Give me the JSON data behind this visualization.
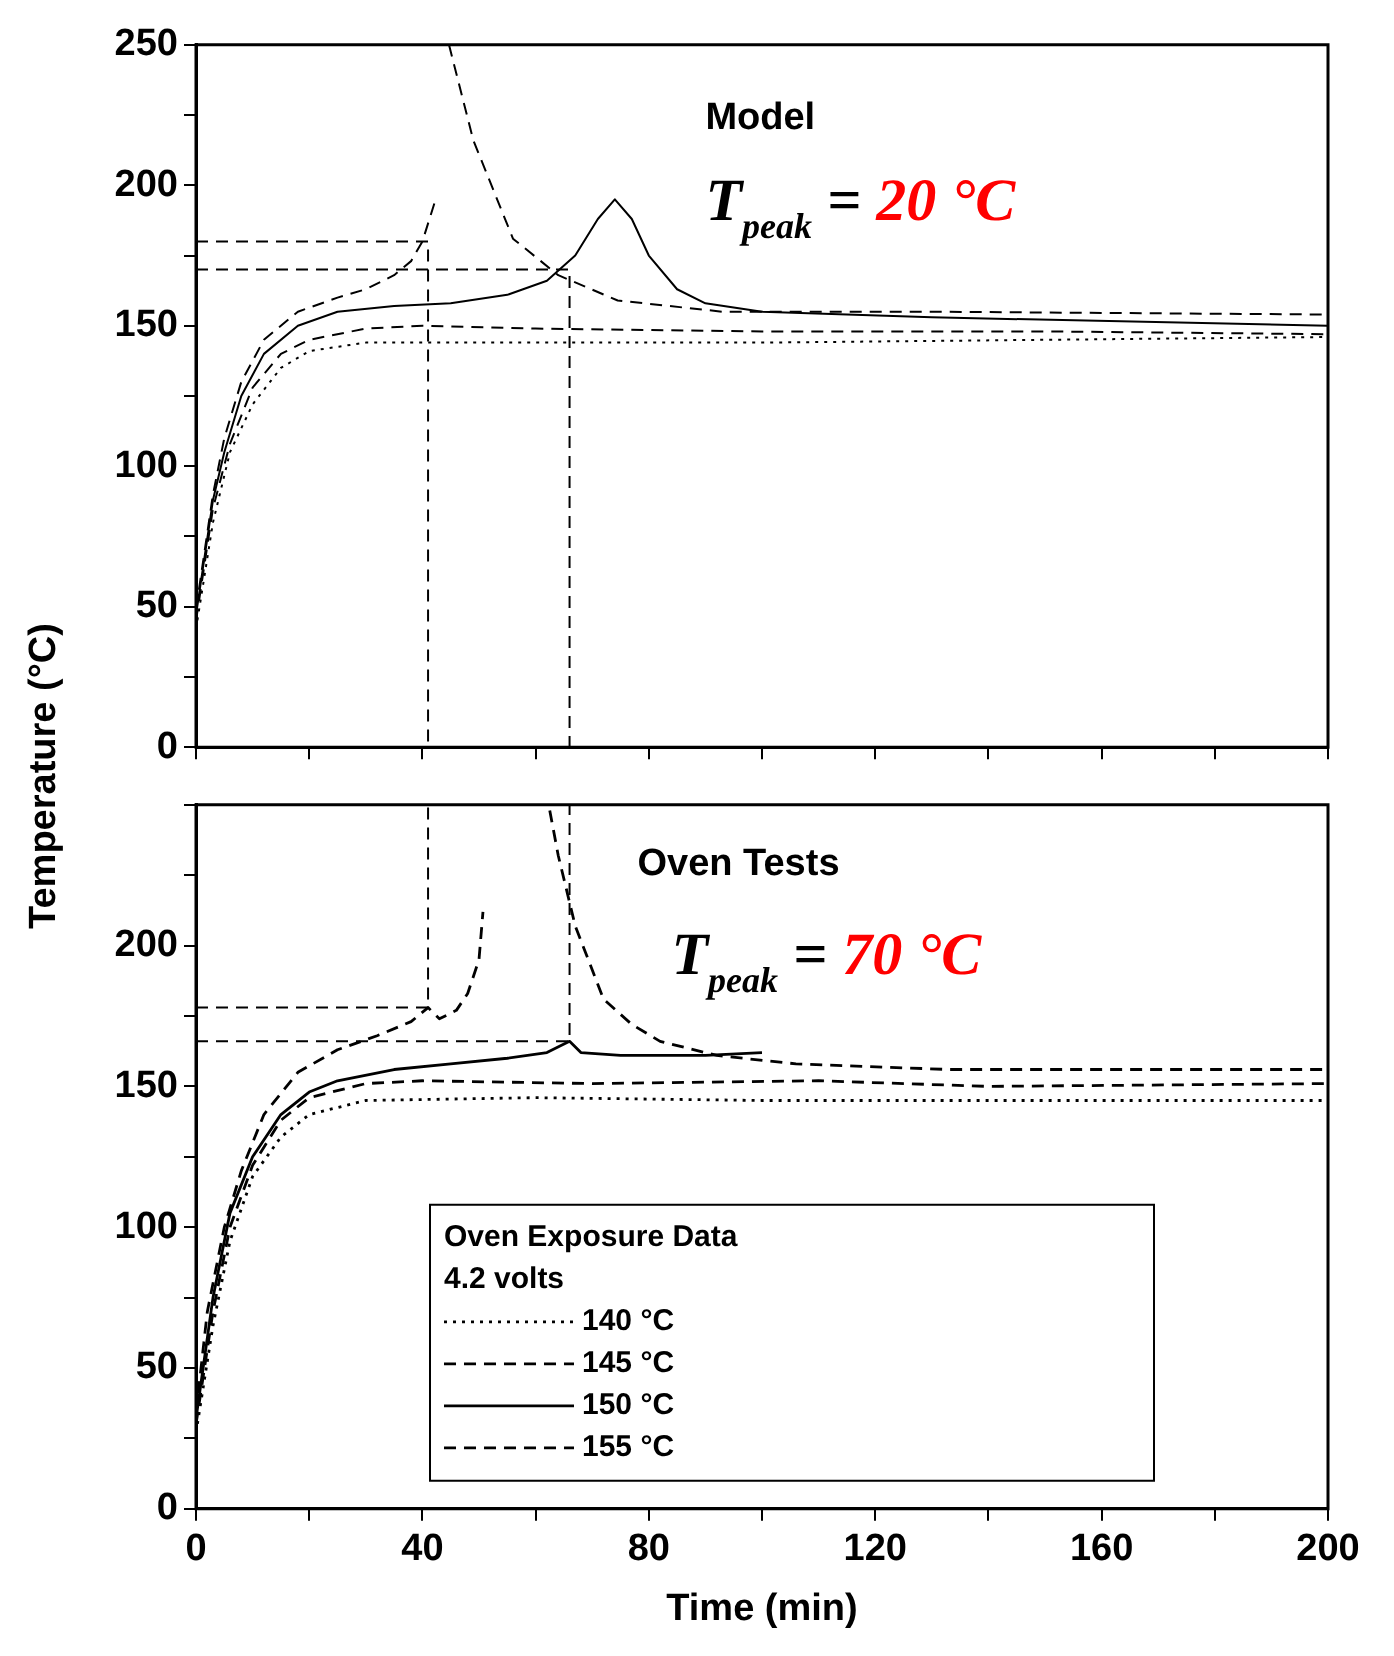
{
  "chart_data": [
    {
      "type": "line",
      "title": "Model",
      "ylabel": "Temperature (°C)",
      "annotations": [
        "T$_{peak}$ = 20 °C"
      ],
      "ylim": [
        0,
        250
      ],
      "yticks": [
        0,
        {
          "value": 25,
          "label": null
        },
        50,
        {
          "value": 75,
          "label": null
        },
        100,
        {
          "value": 125,
          "label": null
        },
        150,
        {
          "value": 175,
          "label": null
        },
        200,
        {
          "value": 225,
          "label": null
        },
        250
      ],
      "xlim": [
        0,
        200
      ],
      "xticks": [
        {
          "value": 0,
          "label": null
        },
        {
          "value": 20,
          "label": null
        },
        {
          "value": 40,
          "label": null
        },
        {
          "value": 60,
          "label": null
        },
        {
          "value": 80,
          "label": null
        },
        {
          "value": 100,
          "label": null
        },
        {
          "value": 120,
          "label": null
        },
        {
          "value": 140,
          "label": null
        },
        {
          "value": 160,
          "label": null
        },
        {
          "value": 180,
          "label": null
        },
        {
          "value": 200,
          "label": null
        }
      ],
      "tick_labels": "y",
      "grid": false,
      "legend": false,
      "marker": "none",
      "series": [
        {
          "color": "#000000",
          "line_style": "dotted",
          "x": [
            0,
            3,
            6,
            10,
            15,
            20,
            30,
            60,
            100,
            150,
            200
          ],
          "values": [
            42,
            80,
            105,
            122,
            135,
            141,
            144,
            144,
            144,
            145,
            146
          ]
        },
        {
          "color": "#000000",
          "line_style": "dashed",
          "x": [
            0,
            3,
            6,
            10,
            15,
            20,
            30,
            40,
            60,
            100,
            150,
            200
          ],
          "values": [
            45,
            85,
            108,
            128,
            140,
            145,
            149,
            150,
            149,
            148,
            148,
            147
          ]
        },
        {
          "color": "#000000",
          "line_style": "solid",
          "x": [
            0,
            3,
            5,
            8,
            12,
            18,
            25,
            35,
            45,
            55,
            62,
            67,
            71,
            74,
            77,
            80,
            85,
            90,
            100,
            130,
            200
          ],
          "values": [
            47,
            88,
            105,
            125,
            140,
            150,
            155,
            157,
            158,
            161,
            166,
            175,
            188,
            195,
            188,
            175,
            163,
            158,
            155,
            153,
            150
          ]
        },
        {
          "color": "#000000",
          "line_style": "dashed",
          "x": [
            0,
            3,
            5,
            8,
            12,
            18,
            25,
            30,
            35,
            38,
            40,
            42.5,
            43.5,
            44.7,
            49,
            56,
            64,
            74.5,
            93,
            130,
            200
          ],
          "values": [
            49,
            90,
            110,
            130,
            145,
            155,
            160,
            163,
            168,
            173,
            180,
            196,
            null,
            250,
            216,
            181,
            168,
            159,
            155,
            155,
            154
          ]
        },
        {
          "type": "line",
          "color": "#000000",
          "line_style": "dashed",
          "x": [
            0,
            41,
            41
          ],
          "values": [
            180,
            180,
            0
          ]
        },
        {
          "type": "line",
          "color": "#000000",
          "line_style": "dashed",
          "x": [
            0,
            66,
            66
          ],
          "values": [
            170,
            170,
            0
          ]
        }
      ]
    },
    {
      "type": "line",
      "title": "Oven Tests",
      "xlabel": "Time (min)",
      "annotations": [
        "T$_{peak}$ = 70 °C"
      ],
      "legend_title": "Oven Exposure Data\n4.2 volts",
      "legend": "bottom",
      "ylim": [
        0,
        250
      ],
      "yticks": [
        0,
        {
          "value": 25,
          "label": null
        },
        50,
        {
          "value": 75,
          "label": null
        },
        100,
        {
          "value": 125,
          "label": null
        },
        150,
        {
          "value": 175,
          "label": null
        },
        200,
        {
          "value": 225,
          "label": null
        },
        {
          "value": 250,
          "label": null
        }
      ],
      "xlim": [
        0,
        200
      ],
      "xticks": [
        0,
        {
          "value": 20,
          "label": null
        },
        40,
        {
          "value": 60,
          "label": null
        },
        80,
        {
          "value": 100,
          "label": null
        },
        120,
        {
          "value": 140,
          "label": null
        },
        160,
        {
          "value": 180,
          "label": null
        },
        200
      ],
      "grid": false,
      "marker": "none",
      "series": [
        {
          "name": "140 °C",
          "color": "#000000",
          "line_style": "dotted",
          "x": [
            0,
            3,
            6,
            10,
            15,
            20,
            30,
            60,
            100,
            150,
            200
          ],
          "values": [
            27,
            65,
            95,
            118,
            132,
            140,
            145,
            146,
            145,
            145,
            145
          ]
        },
        {
          "name": "145 °C",
          "color": "#000000",
          "line_style": "dashed",
          "x": [
            0,
            3,
            6,
            10,
            15,
            20,
            30,
            40,
            70,
            110,
            140,
            200
          ],
          "values": [
            30,
            70,
            100,
            122,
            138,
            146,
            151,
            152,
            151,
            152,
            150,
            151
          ]
        },
        {
          "name": "150 °C",
          "color": "#000000",
          "line_style": "solid",
          "x": [
            0,
            3,
            6,
            10,
            15,
            20,
            25,
            35,
            45,
            55,
            62,
            66,
            68,
            75,
            90,
            100
          ],
          "values": [
            32,
            75,
            105,
            125,
            140,
            148,
            152,
            156,
            158,
            160,
            162,
            166,
            162,
            161,
            161,
            162
          ]
        },
        {
          "name": "155 °C",
          "color": "#000000",
          "line_style": "dashed",
          "x": [
            0,
            2,
            5,
            8,
            12,
            18,
            25,
            32,
            38,
            41,
            43,
            46,
            48,
            50,
            50.7,
            56,
            62.5,
            64,
            67,
            72,
            77,
            82,
            92,
            106,
            133,
            200
          ],
          "values": [
            34,
            70,
            100,
            120,
            140,
            155,
            163,
            168,
            173,
            178,
            174,
            177,
            183,
            195,
            212,
            null,
            248,
            232,
            207,
            181,
            172,
            166,
            161,
            158,
            156,
            156
          ]
        },
        {
          "type": "line",
          "color": "#000000",
          "line_style": "dashed",
          "x": [
            0,
            41,
            41
          ],
          "values": [
            178,
            178,
            250
          ]
        },
        {
          "type": "line",
          "color": "#000000",
          "line_style": "dashed",
          "x": [
            0,
            66,
            66
          ],
          "values": [
            166,
            166,
            250
          ]
        }
      ]
    }
  ]
}
